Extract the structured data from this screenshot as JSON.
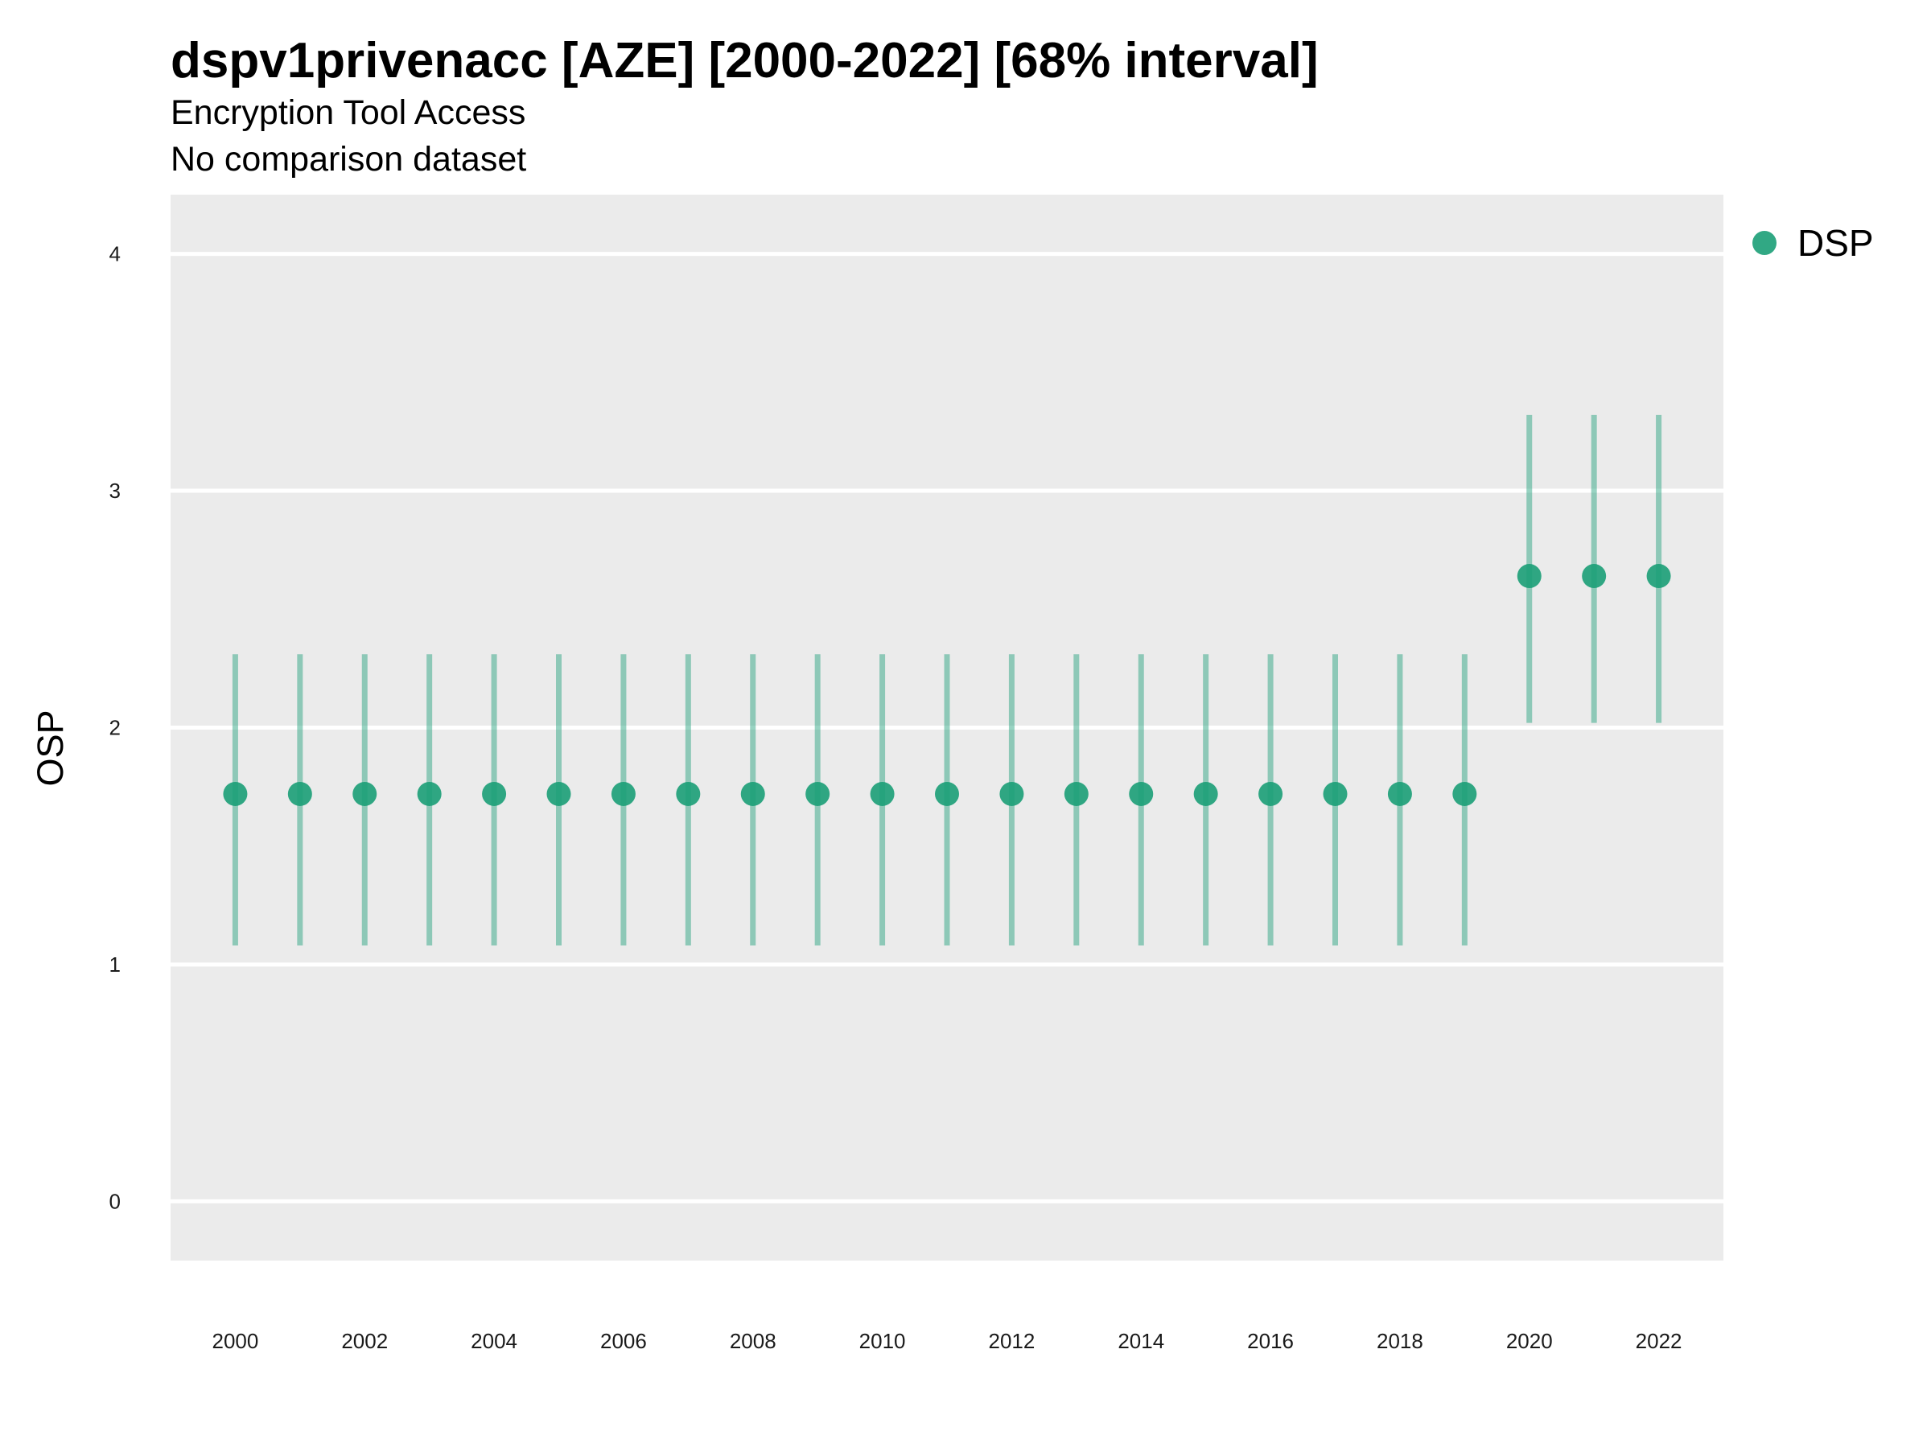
{
  "chart_data": {
    "type": "scatter",
    "title": "dspv1privenacc [AZE] [2000-2022] [68% interval]",
    "subtitle": "Encryption Tool Access",
    "caption": "No comparison dataset",
    "xlabel": "",
    "ylabel": "OSP",
    "xlim": [
      1999,
      2023
    ],
    "ylim": [
      -0.25,
      4.25
    ],
    "x_ticks": [
      2000,
      2002,
      2004,
      2006,
      2008,
      2010,
      2012,
      2014,
      2016,
      2018,
      2020,
      2022
    ],
    "y_ticks": [
      0,
      1,
      2,
      3,
      4
    ],
    "grid": true,
    "legend_position": "right",
    "series": [
      {
        "name": "DSP",
        "color": "#1b9e77",
        "x": [
          2000,
          2001,
          2002,
          2003,
          2004,
          2005,
          2006,
          2007,
          2008,
          2009,
          2010,
          2011,
          2012,
          2013,
          2014,
          2015,
          2016,
          2017,
          2018,
          2019,
          2020,
          2021,
          2022
        ],
        "y": [
          1.72,
          1.72,
          1.72,
          1.72,
          1.72,
          1.72,
          1.72,
          1.72,
          1.72,
          1.72,
          1.72,
          1.72,
          1.72,
          1.72,
          1.72,
          1.72,
          1.72,
          1.72,
          1.72,
          1.72,
          2.64,
          2.64,
          2.64
        ],
        "lower": [
          1.08,
          1.08,
          1.08,
          1.08,
          1.08,
          1.08,
          1.08,
          1.08,
          1.08,
          1.08,
          1.08,
          1.08,
          1.08,
          1.08,
          1.08,
          1.08,
          1.08,
          1.08,
          1.08,
          1.08,
          2.02,
          2.02,
          2.02
        ],
        "upper": [
          2.31,
          2.31,
          2.31,
          2.31,
          2.31,
          2.31,
          2.31,
          2.31,
          2.31,
          2.31,
          2.31,
          2.31,
          2.31,
          2.31,
          2.31,
          2.31,
          2.31,
          2.31,
          2.31,
          2.31,
          3.32,
          3.32,
          3.32
        ]
      }
    ]
  }
}
